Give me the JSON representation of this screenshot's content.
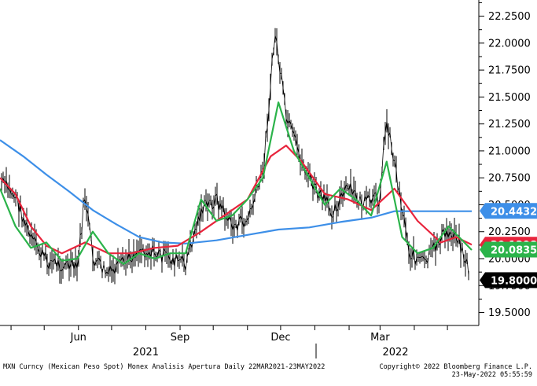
{
  "chart_data": {
    "type": "line",
    "title": "",
    "xlabel": "",
    "ylabel": "",
    "ylim": [
      19.38,
      22.4
    ],
    "y_ticks": [
      19.5,
      19.75,
      20.0,
      20.25,
      20.5,
      20.75,
      21.0,
      21.25,
      21.5,
      21.75,
      22.0,
      22.25
    ],
    "y_tick_labels": [
      "19.5000",
      "19.7500",
      "20.0000",
      "20.2500",
      "20.5000",
      "20.7500",
      "21.0000",
      "21.2500",
      "21.5000",
      "21.7500",
      "22.0000",
      "22.2500"
    ],
    "x_tick_labels": [
      "Jun",
      "Sep",
      "Dec",
      "Mar"
    ],
    "year_labels": [
      "2021",
      "2022"
    ],
    "x_range": [
      "2021-03-22",
      "2022-05-23"
    ],
    "grid": false,
    "value_tags": [
      {
        "label": "20.4432",
        "value": 20.4432,
        "color": "#3d8fe8"
      },
      {
        "label": "20.1298",
        "value": 20.1298,
        "color": "#e8243c"
      },
      {
        "label": "20.0835",
        "value": 20.0835,
        "color": "#2bb34a"
      },
      {
        "label": "19.8000",
        "value": 19.8,
        "color": "#000000"
      }
    ],
    "series": [
      {
        "key": "price",
        "color": "#000000",
        "x": [
          "2021-03-22",
          "2021-04-05",
          "2021-04-19",
          "2021-05-03",
          "2021-05-17",
          "2021-05-31",
          "2021-06-07",
          "2021-06-14",
          "2021-06-28",
          "2021-07-12",
          "2021-07-26",
          "2021-08-09",
          "2021-08-23",
          "2021-09-06",
          "2021-09-20",
          "2021-10-04",
          "2021-10-18",
          "2021-11-01",
          "2021-11-15",
          "2021-11-26",
          "2021-12-06",
          "2021-12-20",
          "2022-01-03",
          "2022-01-17",
          "2022-01-31",
          "2022-02-14",
          "2022-02-28",
          "2022-03-07",
          "2022-03-14",
          "2022-03-28",
          "2022-04-11",
          "2022-04-25",
          "2022-05-09",
          "2022-05-23"
        ],
        "y": [
          20.72,
          20.58,
          20.18,
          19.98,
          19.95,
          19.9,
          20.6,
          20.0,
          19.85,
          19.95,
          20.1,
          20.05,
          20.0,
          19.95,
          20.45,
          20.55,
          20.3,
          20.35,
          20.8,
          22.1,
          21.3,
          20.9,
          20.6,
          20.45,
          20.65,
          20.5,
          20.55,
          21.3,
          20.9,
          20.05,
          19.95,
          20.2,
          20.25,
          19.8
        ]
      },
      {
        "key": "ma-short",
        "color": "#2bb34a",
        "x": [
          "2021-03-22",
          "2021-04-05",
          "2021-04-19",
          "2021-05-03",
          "2021-05-17",
          "2021-05-31",
          "2021-06-14",
          "2021-06-28",
          "2021-07-12",
          "2021-07-26",
          "2021-08-09",
          "2021-08-23",
          "2021-09-06",
          "2021-09-20",
          "2021-10-04",
          "2021-10-18",
          "2021-11-01",
          "2021-11-15",
          "2021-11-29",
          "2021-12-13",
          "2021-12-27",
          "2022-01-10",
          "2022-01-24",
          "2022-02-07",
          "2022-02-21",
          "2022-03-07",
          "2022-03-21",
          "2022-04-04",
          "2022-04-18",
          "2022-05-02",
          "2022-05-23"
        ],
        "y": [
          20.65,
          20.3,
          20.1,
          20.15,
          19.98,
          20.0,
          20.25,
          20.05,
          19.95,
          20.05,
          20.0,
          20.05,
          20.05,
          20.55,
          20.35,
          20.4,
          20.55,
          20.75,
          21.45,
          21.0,
          20.75,
          20.5,
          20.65,
          20.55,
          20.4,
          20.9,
          20.2,
          20.05,
          20.1,
          20.3,
          20.08
        ]
      },
      {
        "key": "ma-medium",
        "color": "#e8243c",
        "x": [
          "2021-03-22",
          "2021-04-05",
          "2021-04-19",
          "2021-05-03",
          "2021-05-17",
          "2021-06-07",
          "2021-06-28",
          "2021-07-19",
          "2021-08-09",
          "2021-08-30",
          "2021-09-20",
          "2021-10-11",
          "2021-11-01",
          "2021-11-22",
          "2021-12-06",
          "2021-12-20",
          "2022-01-10",
          "2022-01-31",
          "2022-02-21",
          "2022-03-14",
          "2022-04-04",
          "2022-04-25",
          "2022-05-09",
          "2022-05-23"
        ],
        "y": [
          20.75,
          20.6,
          20.3,
          20.12,
          20.05,
          20.15,
          20.05,
          20.05,
          20.1,
          20.12,
          20.25,
          20.4,
          20.55,
          20.95,
          21.05,
          20.9,
          20.6,
          20.55,
          20.45,
          20.65,
          20.35,
          20.15,
          20.2,
          20.13
        ]
      },
      {
        "key": "ma-long",
        "color": "#3d8fe8",
        "x": [
          "2021-03-22",
          "2021-04-12",
          "2021-05-03",
          "2021-05-24",
          "2021-06-14",
          "2021-07-05",
          "2021-07-26",
          "2021-08-16",
          "2021-09-06",
          "2021-10-04",
          "2021-11-01",
          "2021-11-29",
          "2021-12-27",
          "2022-01-24",
          "2022-02-21",
          "2022-03-14",
          "2022-04-04",
          "2022-05-02",
          "2022-05-23"
        ],
        "y": [
          21.1,
          20.95,
          20.78,
          20.62,
          20.45,
          20.32,
          20.2,
          20.15,
          20.14,
          20.17,
          20.22,
          20.27,
          20.29,
          20.34,
          20.38,
          20.44,
          20.44,
          20.44,
          20.44
        ]
      }
    ]
  },
  "footer": {
    "left": "MXN Curncy (Mexican Peso Spot) Monex Analisis Apertura  Daily 22MAR2021-23MAY2022",
    "right_line1": "Copyright© 2022 Bloomberg Finance L.P.",
    "right_line2": "23-May-2022 05:55:59"
  }
}
